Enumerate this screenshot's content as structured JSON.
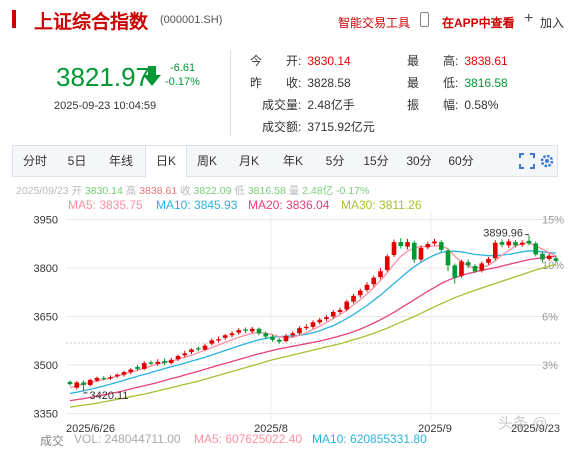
{
  "header": {
    "title": "上证综合指数",
    "code": "(000001.SH)",
    "tool_label": "智能交易工具",
    "app_label": "在APP中查看",
    "add_label": "加入"
  },
  "quote": {
    "price": "3821.97",
    "change": "-6.61",
    "change_pct": "-0.17%",
    "timestamp": "2025-09-23 10:04:59",
    "open_label": "今　　开:",
    "open": "3830.14",
    "high_label": "最　　高:",
    "high": "3838.61",
    "prev_label": "昨　　收:",
    "prev": "3828.58",
    "low_label": "最　　低:",
    "low": "3816.58",
    "vol_label": "成交量:",
    "vol": "2.48亿手",
    "amp_label": "振　　幅:",
    "amp": "0.58%",
    "amt_label": "成交额:",
    "amt": "3715.92亿元"
  },
  "tabs": [
    {
      "label": "分时"
    },
    {
      "label": "5日"
    },
    {
      "label": "年线"
    },
    {
      "label": "日K",
      "active": true
    },
    {
      "label": "周K"
    },
    {
      "label": "月K"
    },
    {
      "label": "年K"
    },
    {
      "label": "5分"
    },
    {
      "label": "15分"
    },
    {
      "label": "30分"
    },
    {
      "label": "60分"
    }
  ],
  "infoline": {
    "date": "2025/09/23",
    "open_l": "开",
    "open": "3830.14",
    "high_l": "高",
    "high": "3838.61",
    "close_l": "收",
    "close": "3822.09",
    "low_l": "低",
    "low": "3816.58",
    "vol_l": "量",
    "vol": "2.48亿",
    "pct": "-0.17%"
  },
  "ma": {
    "ma5": "MA5: 3835.75",
    "ma10": "MA10: 3845.93",
    "ma20": "MA20: 3836.04",
    "ma30": "MA30: 3811.26"
  },
  "volume": {
    "label": "成交",
    "vol": "VOL: 248044711.00",
    "ma5": "MA5: 607625022.40",
    "ma10": "MA10: 620855331.80"
  },
  "watermark": "头条 @",
  "colors": {
    "up": "#e00000",
    "down": "#009933",
    "ma5": "#ff8fa0",
    "ma10": "#2ab3e0",
    "ma20": "#e8407a",
    "ma30": "#a8c032"
  },
  "chart_data": {
    "type": "candlestick",
    "yticks": [
      "3350",
      "3500",
      "3650",
      "3800",
      "3950"
    ],
    "pct_ticks": [
      "15%",
      "10%",
      "6%",
      "3%"
    ],
    "xticks": [
      "2025/6/26",
      "2025/8",
      "2025/9",
      "2025/9/23"
    ],
    "max_label": "3899.96",
    "min_label": "3420.11",
    "ylim": [
      3330,
      3970
    ],
    "candles": [
      {
        "o": 3448,
        "c": 3441,
        "h": 3452,
        "l": 3436
      },
      {
        "o": 3430,
        "c": 3446,
        "h": 3450,
        "l": 3425
      },
      {
        "o": 3446,
        "c": 3438,
        "h": 3452,
        "l": 3420
      },
      {
        "o": 3438,
        "c": 3454,
        "h": 3458,
        "l": 3434
      },
      {
        "o": 3452,
        "c": 3460,
        "h": 3464,
        "l": 3448
      },
      {
        "o": 3460,
        "c": 3458,
        "h": 3466,
        "l": 3452
      },
      {
        "o": 3458,
        "c": 3462,
        "h": 3468,
        "l": 3454
      },
      {
        "o": 3465,
        "c": 3470,
        "h": 3474,
        "l": 3460
      },
      {
        "o": 3470,
        "c": 3478,
        "h": 3482,
        "l": 3464
      },
      {
        "o": 3478,
        "c": 3486,
        "h": 3490,
        "l": 3472
      },
      {
        "o": 3494,
        "c": 3488,
        "h": 3500,
        "l": 3482
      },
      {
        "o": 3488,
        "c": 3506,
        "h": 3512,
        "l": 3484
      },
      {
        "o": 3508,
        "c": 3504,
        "h": 3514,
        "l": 3500
      },
      {
        "o": 3504,
        "c": 3510,
        "h": 3518,
        "l": 3498
      },
      {
        "o": 3512,
        "c": 3506,
        "h": 3520,
        "l": 3500
      },
      {
        "o": 3506,
        "c": 3516,
        "h": 3522,
        "l": 3502
      },
      {
        "o": 3518,
        "c": 3528,
        "h": 3532,
        "l": 3512
      },
      {
        "o": 3530,
        "c": 3536,
        "h": 3544,
        "l": 3524
      },
      {
        "o": 3540,
        "c": 3548,
        "h": 3552,
        "l": 3534
      },
      {
        "o": 3552,
        "c": 3548,
        "h": 3558,
        "l": 3542
      },
      {
        "o": 3548,
        "c": 3560,
        "h": 3566,
        "l": 3544
      },
      {
        "o": 3566,
        "c": 3576,
        "h": 3582,
        "l": 3560
      },
      {
        "o": 3576,
        "c": 3580,
        "h": 3588,
        "l": 3570
      },
      {
        "o": 3584,
        "c": 3592,
        "h": 3596,
        "l": 3578
      },
      {
        "o": 3592,
        "c": 3598,
        "h": 3604,
        "l": 3586
      },
      {
        "o": 3600,
        "c": 3608,
        "h": 3614,
        "l": 3594
      },
      {
        "o": 3610,
        "c": 3606,
        "h": 3616,
        "l": 3598
      },
      {
        "o": 3604,
        "c": 3612,
        "h": 3618,
        "l": 3598
      },
      {
        "o": 3612,
        "c": 3598,
        "h": 3616,
        "l": 3592
      },
      {
        "o": 3598,
        "c": 3588,
        "h": 3604,
        "l": 3580
      },
      {
        "o": 3588,
        "c": 3578,
        "h": 3594,
        "l": 3572
      },
      {
        "o": 3578,
        "c": 3572,
        "h": 3584,
        "l": 3566
      },
      {
        "o": 3574,
        "c": 3590,
        "h": 3596,
        "l": 3570
      },
      {
        "o": 3592,
        "c": 3598,
        "h": 3604,
        "l": 3586
      },
      {
        "o": 3598,
        "c": 3614,
        "h": 3620,
        "l": 3594
      },
      {
        "o": 3614,
        "c": 3618,
        "h": 3626,
        "l": 3608
      },
      {
        "o": 3618,
        "c": 3632,
        "h": 3638,
        "l": 3612
      },
      {
        "o": 3632,
        "c": 3640,
        "h": 3646,
        "l": 3626
      },
      {
        "o": 3642,
        "c": 3648,
        "h": 3654,
        "l": 3636
      },
      {
        "o": 3650,
        "c": 3664,
        "h": 3670,
        "l": 3644
      },
      {
        "o": 3664,
        "c": 3670,
        "h": 3678,
        "l": 3658
      },
      {
        "o": 3672,
        "c": 3696,
        "h": 3702,
        "l": 3666
      },
      {
        "o": 3696,
        "c": 3714,
        "h": 3720,
        "l": 3690
      },
      {
        "o": 3716,
        "c": 3730,
        "h": 3736,
        "l": 3708
      },
      {
        "o": 3732,
        "c": 3748,
        "h": 3756,
        "l": 3726
      },
      {
        "o": 3750,
        "c": 3770,
        "h": 3776,
        "l": 3742
      },
      {
        "o": 3772,
        "c": 3790,
        "h": 3800,
        "l": 3766
      },
      {
        "o": 3794,
        "c": 3836,
        "h": 3842,
        "l": 3788
      },
      {
        "o": 3840,
        "c": 3880,
        "h": 3888,
        "l": 3834
      },
      {
        "o": 3880,
        "c": 3868,
        "h": 3892,
        "l": 3860
      },
      {
        "o": 3866,
        "c": 3880,
        "h": 3890,
        "l": 3858
      },
      {
        "o": 3878,
        "c": 3826,
        "h": 3884,
        "l": 3816
      },
      {
        "o": 3826,
        "c": 3862,
        "h": 3870,
        "l": 3820
      },
      {
        "o": 3864,
        "c": 3874,
        "h": 3880,
        "l": 3858
      },
      {
        "o": 3876,
        "c": 3882,
        "h": 3890,
        "l": 3870
      },
      {
        "o": 3880,
        "c": 3856,
        "h": 3886,
        "l": 3850
      },
      {
        "o": 3854,
        "c": 3808,
        "h": 3860,
        "l": 3790
      },
      {
        "o": 3808,
        "c": 3770,
        "h": 3814,
        "l": 3752
      },
      {
        "o": 3776,
        "c": 3820,
        "h": 3826,
        "l": 3770
      },
      {
        "o": 3818,
        "c": 3808,
        "h": 3826,
        "l": 3800
      },
      {
        "o": 3806,
        "c": 3790,
        "h": 3812,
        "l": 3784
      },
      {
        "o": 3792,
        "c": 3814,
        "h": 3820,
        "l": 3786
      },
      {
        "o": 3816,
        "c": 3828,
        "h": 3834,
        "l": 3810
      },
      {
        "o": 3830,
        "c": 3878,
        "h": 3886,
        "l": 3824
      },
      {
        "o": 3880,
        "c": 3872,
        "h": 3888,
        "l": 3864
      },
      {
        "o": 3870,
        "c": 3882,
        "h": 3890,
        "l": 3862
      },
      {
        "o": 3880,
        "c": 3870,
        "h": 3886,
        "l": 3864
      },
      {
        "o": 3872,
        "c": 3878,
        "h": 3886,
        "l": 3866
      },
      {
        "o": 3884,
        "c": 3876,
        "h": 3900,
        "l": 3870
      },
      {
        "o": 3876,
        "c": 3842,
        "h": 3882,
        "l": 3836
      },
      {
        "o": 3844,
        "c": 3826,
        "h": 3850,
        "l": 3818
      },
      {
        "o": 3828,
        "c": 3838,
        "h": 3846,
        "l": 3822
      },
      {
        "o": 3830,
        "c": 3822,
        "h": 3839,
        "l": 3817
      }
    ],
    "ma_lines": {
      "ma5": [
        3430,
        3436,
        3442,
        3446,
        3450,
        3455,
        3460,
        3466,
        3472,
        3478,
        3484,
        3490,
        3497,
        3503,
        3508,
        3512,
        3518,
        3524,
        3530,
        3538,
        3546,
        3554,
        3562,
        3570,
        3578,
        3586,
        3592,
        3598,
        3600,
        3598,
        3594,
        3588,
        3584,
        3586,
        3592,
        3600,
        3610,
        3620,
        3632,
        3644,
        3656,
        3670,
        3686,
        3702,
        3720,
        3740,
        3762,
        3786,
        3812,
        3836,
        3852,
        3862,
        3866,
        3866,
        3868,
        3870,
        3858,
        3836,
        3818,
        3806,
        3800,
        3802,
        3808,
        3822,
        3840,
        3854,
        3868,
        3876,
        3878,
        3868,
        3858,
        3848,
        3836
      ],
      "ma10": [
        3412,
        3416,
        3420,
        3425,
        3430,
        3435,
        3441,
        3447,
        3453,
        3459,
        3465,
        3471,
        3477,
        3483,
        3489,
        3495,
        3500,
        3506,
        3512,
        3518,
        3524,
        3531,
        3538,
        3545,
        3552,
        3559,
        3566,
        3572,
        3578,
        3582,
        3586,
        3588,
        3589,
        3590,
        3592,
        3595,
        3600,
        3606,
        3614,
        3622,
        3632,
        3644,
        3656,
        3670,
        3684,
        3700,
        3716,
        3734,
        3752,
        3770,
        3788,
        3804,
        3818,
        3830,
        3840,
        3848,
        3852,
        3852,
        3850,
        3846,
        3842,
        3840,
        3838,
        3838,
        3840,
        3842,
        3846,
        3850,
        3853,
        3852,
        3850,
        3848,
        3846
      ],
      "ma20": [
        3390,
        3393,
        3396,
        3400,
        3404,
        3408,
        3412,
        3416,
        3421,
        3426,
        3431,
        3436,
        3441,
        3446,
        3452,
        3458,
        3463,
        3469,
        3475,
        3481,
        3487,
        3493,
        3499,
        3505,
        3511,
        3517,
        3523,
        3529,
        3535,
        3540,
        3545,
        3550,
        3554,
        3558,
        3562,
        3566,
        3570,
        3574,
        3579,
        3584,
        3590,
        3596,
        3603,
        3611,
        3620,
        3630,
        3640,
        3651,
        3663,
        3676,
        3689,
        3702,
        3715,
        3728,
        3740,
        3752,
        3762,
        3770,
        3777,
        3783,
        3788,
        3793,
        3797,
        3801,
        3806,
        3811,
        3816,
        3821,
        3826,
        3829,
        3832,
        3834,
        3836
      ],
      "ma30": [
        3370,
        3373,
        3376,
        3379,
        3382,
        3386,
        3390,
        3394,
        3398,
        3402,
        3406,
        3410,
        3415,
        3420,
        3425,
        3430,
        3435,
        3440,
        3445,
        3450,
        3456,
        3462,
        3468,
        3474,
        3480,
        3486,
        3492,
        3498,
        3504,
        3510,
        3516,
        3521,
        3526,
        3531,
        3536,
        3541,
        3546,
        3551,
        3556,
        3561,
        3566,
        3572,
        3578,
        3584,
        3591,
        3598,
        3606,
        3614,
        3623,
        3632,
        3641,
        3650,
        3660,
        3670,
        3680,
        3690,
        3699,
        3708,
        3716,
        3724,
        3731,
        3738,
        3745,
        3752,
        3759,
        3766,
        3773,
        3780,
        3787,
        3794,
        3800,
        3806,
        3811
      ]
    }
  }
}
